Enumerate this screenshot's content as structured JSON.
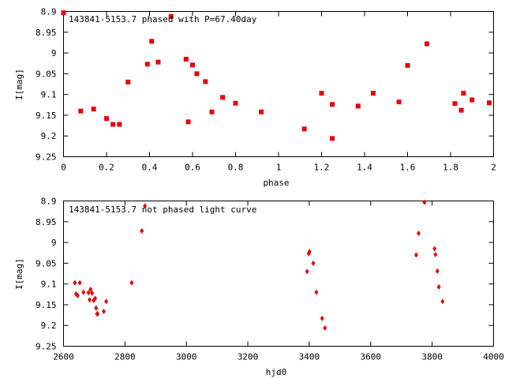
{
  "chart_data": [
    {
      "type": "scatter",
      "title": "143841-5153.7 phased with P=67.40day",
      "xlabel": "phase",
      "ylabel": "I[mag]",
      "xlim": [
        0,
        2
      ],
      "ylim": [
        8.9,
        9.25
      ],
      "y_inverted": true,
      "grid": false,
      "legend": "none",
      "marker": "square",
      "marker_color": "#e8000b",
      "x_ticks": [
        "0",
        "0.2",
        "0.4",
        "0.6",
        "0.8",
        "1",
        "1.2",
        "1.4",
        "1.6",
        "1.8",
        "2"
      ],
      "y_ticks": [
        "8.9",
        "8.95",
        "9",
        "9.05",
        "9.1",
        "9.15",
        "9.2",
        "9.25"
      ],
      "points": [
        {
          "x": 0.0,
          "y": 8.903
        },
        {
          "x": 0.08,
          "y": 9.14
        },
        {
          "x": 0.14,
          "y": 9.135
        },
        {
          "x": 0.2,
          "y": 9.158
        },
        {
          "x": 0.23,
          "y": 9.172
        },
        {
          "x": 0.26,
          "y": 9.172
        },
        {
          "x": 0.3,
          "y": 9.07
        },
        {
          "x": 0.39,
          "y": 9.027
        },
        {
          "x": 0.41,
          "y": 8.972
        },
        {
          "x": 0.44,
          "y": 9.022
        },
        {
          "x": 0.5,
          "y": 8.912
        },
        {
          "x": 0.57,
          "y": 9.015
        },
        {
          "x": 0.58,
          "y": 9.166
        },
        {
          "x": 0.6,
          "y": 9.029
        },
        {
          "x": 0.62,
          "y": 9.05
        },
        {
          "x": 0.66,
          "y": 9.069
        },
        {
          "x": 0.69,
          "y": 9.142
        },
        {
          "x": 0.74,
          "y": 9.107
        },
        {
          "x": 0.8,
          "y": 9.121
        },
        {
          "x": 0.92,
          "y": 9.142
        },
        {
          "x": 1.12,
          "y": 9.183
        },
        {
          "x": 1.2,
          "y": 9.097
        },
        {
          "x": 1.25,
          "y": 9.124
        },
        {
          "x": 1.25,
          "y": 9.206
        },
        {
          "x": 1.37,
          "y": 9.128
        },
        {
          "x": 1.44,
          "y": 9.097
        },
        {
          "x": 1.56,
          "y": 9.118
        },
        {
          "x": 1.6,
          "y": 9.03
        },
        {
          "x": 1.69,
          "y": 8.978
        },
        {
          "x": 1.82,
          "y": 9.122
        },
        {
          "x": 1.85,
          "y": 9.138
        },
        {
          "x": 1.86,
          "y": 9.097
        },
        {
          "x": 1.9,
          "y": 9.113
        },
        {
          "x": 1.98,
          "y": 9.12
        }
      ]
    },
    {
      "type": "scatter",
      "title": "143841-5153.7 not phased light curve",
      "xlabel": "hjd0",
      "ylabel": "I[mag]",
      "xlim": [
        2600,
        4000
      ],
      "ylim": [
        8.9,
        9.25
      ],
      "y_inverted": true,
      "grid": false,
      "legend": "none",
      "marker": "diamond",
      "marker_color": "#e8000b",
      "x_ticks": [
        "2600",
        "2800",
        "3000",
        "3200",
        "3400",
        "3600",
        "3800",
        "4000"
      ],
      "y_ticks": [
        "8.9",
        "8.95",
        "9",
        "9.05",
        "9.1",
        "9.15",
        "9.2",
        "9.25"
      ],
      "points": [
        {
          "x": 2637,
          "y": 9.097
        },
        {
          "x": 2641,
          "y": 9.124
        },
        {
          "x": 2646,
          "y": 9.128
        },
        {
          "x": 2653,
          "y": 9.097
        },
        {
          "x": 2665,
          "y": 9.12
        },
        {
          "x": 2681,
          "y": 9.121
        },
        {
          "x": 2685,
          "y": 9.138
        },
        {
          "x": 2688,
          "y": 9.113
        },
        {
          "x": 2693,
          "y": 9.122
        },
        {
          "x": 2698,
          "y": 9.14
        },
        {
          "x": 2703,
          "y": 9.135
        },
        {
          "x": 2706,
          "y": 9.158
        },
        {
          "x": 2709,
          "y": 9.172
        },
        {
          "x": 2711,
          "y": 9.172
        },
        {
          "x": 2731,
          "y": 9.166
        },
        {
          "x": 2739,
          "y": 9.142
        },
        {
          "x": 2822,
          "y": 9.097
        },
        {
          "x": 2855,
          "y": 8.972
        },
        {
          "x": 2865,
          "y": 8.912
        },
        {
          "x": 3393,
          "y": 9.07
        },
        {
          "x": 3398,
          "y": 9.027
        },
        {
          "x": 3401,
          "y": 9.022
        },
        {
          "x": 3413,
          "y": 9.05
        },
        {
          "x": 3423,
          "y": 9.12
        },
        {
          "x": 3442,
          "y": 9.183
        },
        {
          "x": 3451,
          "y": 9.206
        },
        {
          "x": 3748,
          "y": 9.03
        },
        {
          "x": 3756,
          "y": 8.978
        },
        {
          "x": 3775,
          "y": 8.903
        },
        {
          "x": 3808,
          "y": 9.015
        },
        {
          "x": 3811,
          "y": 9.029
        },
        {
          "x": 3817,
          "y": 9.069
        },
        {
          "x": 3822,
          "y": 9.107
        },
        {
          "x": 3834,
          "y": 9.142
        }
      ]
    }
  ]
}
